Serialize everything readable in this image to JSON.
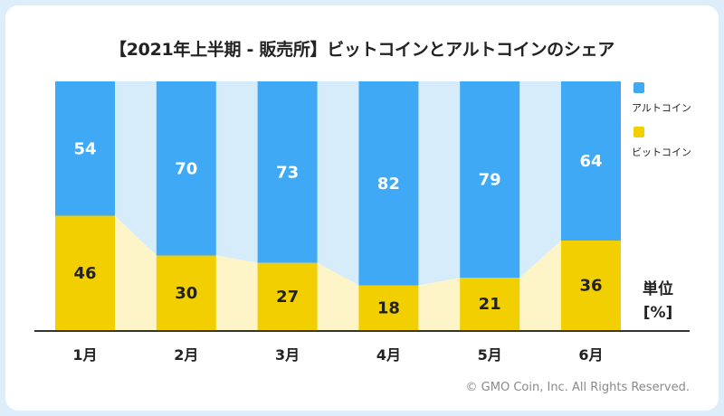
{
  "title": "【2021年上半期 - 販売所】ビットコインとアルトコインのシェア",
  "copyright": "© GMO Coin, Inc. All Rights Reserved.",
  "colors": {
    "altcoin": "#3fa9f5",
    "altcoin_band": "#d6ecfb",
    "bitcoin": "#f2cf00",
    "bitcoin_band": "#fdf5c8",
    "altcoin_text": "#ffffff",
    "bitcoin_text": "#222222"
  },
  "chart_data": {
    "type": "bar",
    "stacked": true,
    "title": "【2021年上半期 - 販売所】ビットコインとアルトコインのシェア",
    "categories": [
      "1月",
      "2月",
      "3月",
      "4月",
      "5月",
      "6月"
    ],
    "series": [
      {
        "name": "ビットコイン",
        "values": [
          46,
          30,
          27,
          18,
          21,
          36
        ]
      },
      {
        "name": "アルトコイン",
        "values": [
          54,
          70,
          73,
          82,
          79,
          64
        ]
      }
    ],
    "ylim": [
      0,
      100
    ],
    "unit_label": "単位",
    "unit": "[%]",
    "legend": [
      "アルトコイン",
      "ビットコイン"
    ],
    "legend_position": "right"
  }
}
